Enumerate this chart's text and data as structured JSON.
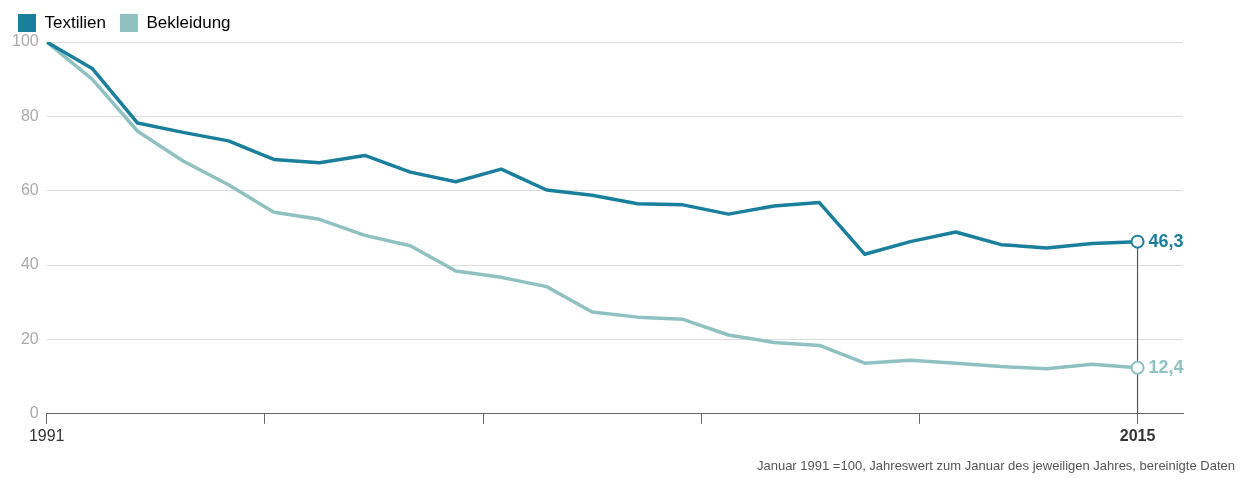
{
  "chart_data": {
    "type": "line",
    "x": [
      1991,
      1992,
      1993,
      1994,
      1995,
      1996,
      1997,
      1998,
      1999,
      2000,
      2001,
      2002,
      2003,
      2004,
      2005,
      2006,
      2007,
      2008,
      2009,
      2010,
      2011,
      2012,
      2013,
      2014,
      2015
    ],
    "series": [
      {
        "name": "Textilien",
        "color": "#1a7f9c",
        "values": [
          100,
          92.9,
          78.2,
          75.7,
          73.4,
          68.4,
          67.5,
          69.5,
          65,
          62.4,
          65.8,
          60.2,
          58.8,
          56.5,
          56.2,
          53.7,
          55.9,
          56.8,
          42.9,
          46.3,
          48.9,
          45.5,
          44.6,
          45.8,
          46.3
        ],
        "value_labels": [
          null,
          null,
          null,
          null,
          null,
          null,
          null,
          null,
          null,
          null,
          null,
          null,
          null,
          null,
          null,
          null,
          null,
          null,
          null,
          null,
          null,
          null,
          null,
          null,
          "46,3"
        ]
      },
      {
        "name": "Bekleidung",
        "color": "#8fc1c3",
        "values": [
          100,
          90,
          76,
          68,
          61.6,
          54.2,
          52.3,
          48,
          45.2,
          38.4,
          36.7,
          34.2,
          27.4,
          26,
          25.4,
          21.2,
          19.2,
          18.4,
          13.6,
          14.4,
          13.6,
          12.7,
          12.1,
          13.3,
          12.4
        ],
        "value_labels": [
          null,
          null,
          null,
          null,
          null,
          null,
          null,
          null,
          null,
          null,
          null,
          null,
          null,
          null,
          null,
          null,
          null,
          null,
          null,
          null,
          null,
          null,
          null,
          null,
          "12,4"
        ]
      }
    ],
    "xlim": [
      1991,
      2016
    ],
    "xticks": [
      1991,
      {
        "value": 1995.8,
        "label": null
      },
      {
        "value": 2000.6,
        "label": null
      },
      {
        "value": 2005.4,
        "label": null
      },
      {
        "value": 2010.2,
        "label": null
      },
      2015
    ],
    "ylim": [
      0,
      100
    ],
    "yticks": [
      0,
      20,
      40,
      60,
      80,
      100
    ],
    "grid": "y",
    "legend": "top left",
    "marker": "none",
    "line_style": "solid",
    "ref_lines": [
      {
        "axis": "x",
        "value": 2015,
        "color": "#555555"
      }
    ],
    "annotations": [
      "Januar 1991 =100, Jahreswert zum Januar des jeweiligen Jahres, bereinigte Daten"
    ]
  }
}
